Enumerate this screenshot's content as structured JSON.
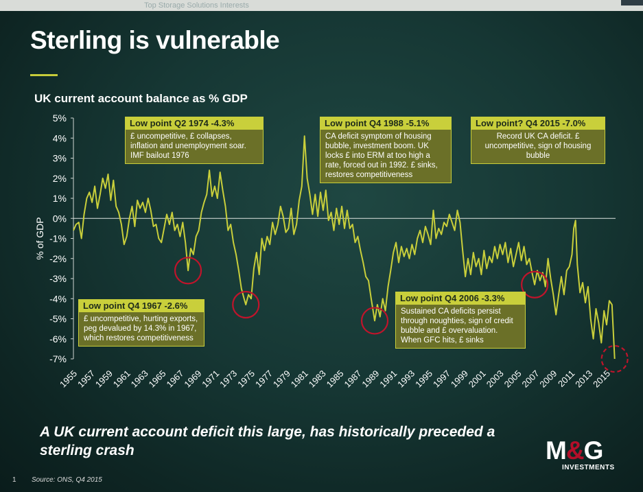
{
  "window": {
    "ghost_text": "Top Storage Solutions Interests"
  },
  "slide": {
    "title": "Sterling is vulnerable",
    "chart_title": "UK current account balance as % GDP",
    "conclusion": "A UK current account deficit this large, has historically preceded a sterling crash",
    "source": "Source: ONS, Q4 2015",
    "page_number": "1",
    "logo": {
      "main_a": "M",
      "main_amp": "&",
      "main_b": "G",
      "sub": "INVESTMENTS"
    }
  },
  "callouts": [
    {
      "head": "Low point Q2 1974 -4.3%",
      "body": "£ uncompetitive, £ collapses, inflation and unemployment soar. IMF bailout 1976"
    },
    {
      "head": "Low point Q4 1988  -5.1%",
      "body": "CA deficit symptom of housing bubble, investment boom.  UK locks  £ into ERM at too high a rate, forced out in 1992.  £ sinks, restores competitiveness"
    },
    {
      "head": "Low point? Q4 2015 -7.0%",
      "body": "Record UK CA deficit. £ uncompetitive, sign of housing bubble"
    },
    {
      "head": "Low point Q4 1967 -2.6%",
      "body": "£ uncompetitive, hurting exports, peg devalued by 14.3% in 1967, which restores competitiveness"
    },
    {
      "head": "Low point Q4 2006 -3.3%",
      "body": "Sustained CA deficits persist through noughties, sign of credit bubble and £ overvaluation. When GFC hits, £ sinks"
    }
  ],
  "chart_data": {
    "type": "line",
    "title": "UK current account balance as % GDP",
    "xlabel": "",
    "ylabel": "% of GDP",
    "ylim": [
      -7,
      5
    ],
    "xlim": [
      1955,
      2016
    ],
    "y_ticks": [
      "5%",
      "4%",
      "3%",
      "2%",
      "1%",
      "0%",
      "-1%",
      "-2%",
      "-3%",
      "-4%",
      "-5%",
      "-6%",
      "-7%"
    ],
    "y_tick_values": [
      5,
      4,
      3,
      2,
      1,
      0,
      -1,
      -2,
      -3,
      -4,
      -5,
      -6,
      -7
    ],
    "x_ticks": [
      "1955",
      "1957",
      "1959",
      "1961",
      "1963",
      "1965",
      "1967",
      "1969",
      "1971",
      "1973",
      "1975",
      "1977",
      "1979",
      "1981",
      "1983",
      "1985",
      "1987",
      "1989",
      "1991",
      "1993",
      "1995",
      "1997",
      "1999",
      "2001",
      "2003",
      "2005",
      "2007",
      "2009",
      "2011",
      "2013",
      "2015"
    ],
    "zero_line": true,
    "highlighted_lows": [
      {
        "year": 1967.9,
        "value": -2.6,
        "style": "solid"
      },
      {
        "year": 1974.4,
        "value": -4.3,
        "style": "solid"
      },
      {
        "year": 1988.9,
        "value": -5.1,
        "style": "solid"
      },
      {
        "year": 2006.9,
        "value": -3.3,
        "style": "solid"
      },
      {
        "year": 2015.9,
        "value": -7.0,
        "style": "dashed"
      }
    ],
    "series": [
      {
        "name": "UK current account balance (% GDP)",
        "color": "#c9cf3b",
        "points": [
          [
            1955.0,
            -0.6
          ],
          [
            1955.3,
            -0.3
          ],
          [
            1955.6,
            -0.2
          ],
          [
            1955.9,
            -1.0
          ],
          [
            1956.2,
            0.2
          ],
          [
            1956.5,
            1.0
          ],
          [
            1956.8,
            1.3
          ],
          [
            1957.1,
            0.8
          ],
          [
            1957.4,
            1.6
          ],
          [
            1957.7,
            0.5
          ],
          [
            1958.0,
            1.2
          ],
          [
            1958.3,
            2.0
          ],
          [
            1958.6,
            1.5
          ],
          [
            1958.9,
            2.2
          ],
          [
            1959.2,
            0.9
          ],
          [
            1959.5,
            1.9
          ],
          [
            1959.8,
            0.6
          ],
          [
            1960.1,
            0.3
          ],
          [
            1960.4,
            -0.3
          ],
          [
            1960.7,
            -1.3
          ],
          [
            1961.0,
            -0.9
          ],
          [
            1961.3,
            0.0
          ],
          [
            1961.6,
            0.6
          ],
          [
            1961.9,
            -0.4
          ],
          [
            1962.2,
            0.9
          ],
          [
            1962.5,
            0.5
          ],
          [
            1962.8,
            0.8
          ],
          [
            1963.1,
            0.3
          ],
          [
            1963.4,
            1.0
          ],
          [
            1963.7,
            0.4
          ],
          [
            1964.0,
            -0.4
          ],
          [
            1964.3,
            -0.3
          ],
          [
            1964.6,
            -1.0
          ],
          [
            1964.9,
            -1.2
          ],
          [
            1965.2,
            -0.5
          ],
          [
            1965.5,
            0.2
          ],
          [
            1965.8,
            -0.3
          ],
          [
            1966.1,
            0.3
          ],
          [
            1966.4,
            -0.6
          ],
          [
            1966.7,
            -0.3
          ],
          [
            1967.0,
            -0.9
          ],
          [
            1967.3,
            -0.2
          ],
          [
            1967.6,
            -1.2
          ],
          [
            1967.9,
            -2.6
          ],
          [
            1968.2,
            -1.5
          ],
          [
            1968.5,
            -1.8
          ],
          [
            1968.8,
            -0.9
          ],
          [
            1969.1,
            -0.6
          ],
          [
            1969.4,
            0.3
          ],
          [
            1969.7,
            0.8
          ],
          [
            1970.0,
            1.2
          ],
          [
            1970.3,
            2.4
          ],
          [
            1970.6,
            1.1
          ],
          [
            1970.9,
            1.6
          ],
          [
            1971.2,
            1.0
          ],
          [
            1971.5,
            2.3
          ],
          [
            1971.8,
            1.4
          ],
          [
            1972.1,
            0.6
          ],
          [
            1972.4,
            -0.6
          ],
          [
            1972.7,
            -0.3
          ],
          [
            1973.0,
            -1.2
          ],
          [
            1973.3,
            -1.8
          ],
          [
            1973.6,
            -2.6
          ],
          [
            1973.9,
            -3.5
          ],
          [
            1974.2,
            -4.0
          ],
          [
            1974.4,
            -4.3
          ],
          [
            1974.7,
            -3.8
          ],
          [
            1975.0,
            -4.0
          ],
          [
            1975.3,
            -2.5
          ],
          [
            1975.6,
            -1.7
          ],
          [
            1975.9,
            -2.8
          ],
          [
            1976.2,
            -1.0
          ],
          [
            1976.5,
            -1.6
          ],
          [
            1976.8,
            -0.9
          ],
          [
            1977.1,
            -1.3
          ],
          [
            1977.4,
            -0.2
          ],
          [
            1977.7,
            -0.8
          ],
          [
            1978.0,
            -0.3
          ],
          [
            1978.3,
            0.6
          ],
          [
            1978.6,
            0.1
          ],
          [
            1978.9,
            -0.7
          ],
          [
            1979.2,
            -0.5
          ],
          [
            1979.5,
            0.5
          ],
          [
            1979.8,
            -0.8
          ],
          [
            1980.1,
            -0.3
          ],
          [
            1980.4,
            0.9
          ],
          [
            1980.7,
            1.6
          ],
          [
            1981.0,
            4.1
          ],
          [
            1981.3,
            2.0
          ],
          [
            1981.6,
            1.2
          ],
          [
            1981.9,
            0.2
          ],
          [
            1982.2,
            1.2
          ],
          [
            1982.5,
            0.1
          ],
          [
            1982.8,
            1.3
          ],
          [
            1983.1,
            0.4
          ],
          [
            1983.4,
            1.4
          ],
          [
            1983.7,
            -0.1
          ],
          [
            1984.0,
            0.3
          ],
          [
            1984.3,
            -0.6
          ],
          [
            1984.6,
            0.5
          ],
          [
            1984.9,
            -0.3
          ],
          [
            1985.2,
            0.6
          ],
          [
            1985.5,
            -0.5
          ],
          [
            1985.8,
            0.4
          ],
          [
            1986.1,
            -0.5
          ],
          [
            1986.4,
            -0.3
          ],
          [
            1986.7,
            -1.2
          ],
          [
            1987.0,
            -0.9
          ],
          [
            1987.3,
            -1.6
          ],
          [
            1987.6,
            -2.2
          ],
          [
            1987.9,
            -2.9
          ],
          [
            1988.2,
            -3.1
          ],
          [
            1988.5,
            -4.0
          ],
          [
            1988.9,
            -5.1
          ],
          [
            1989.2,
            -4.3
          ],
          [
            1989.5,
            -4.9
          ],
          [
            1989.8,
            -4.0
          ],
          [
            1990.1,
            -4.6
          ],
          [
            1990.4,
            -3.4
          ],
          [
            1990.7,
            -2.6
          ],
          [
            1991.0,
            -1.7
          ],
          [
            1991.3,
            -1.2
          ],
          [
            1991.6,
            -2.2
          ],
          [
            1991.9,
            -1.4
          ],
          [
            1992.2,
            -1.9
          ],
          [
            1992.5,
            -1.5
          ],
          [
            1992.8,
            -2.0
          ],
          [
            1993.1,
            -1.3
          ],
          [
            1993.4,
            -1.8
          ],
          [
            1993.7,
            -1.0
          ],
          [
            1994.0,
            -0.6
          ],
          [
            1994.3,
            -1.2
          ],
          [
            1994.6,
            -0.4
          ],
          [
            1994.9,
            -0.8
          ],
          [
            1995.2,
            -1.3
          ],
          [
            1995.5,
            0.4
          ],
          [
            1995.8,
            -1.0
          ],
          [
            1996.1,
            -0.5
          ],
          [
            1996.4,
            -0.8
          ],
          [
            1996.7,
            -0.2
          ],
          [
            1997.0,
            -0.4
          ],
          [
            1997.3,
            0.2
          ],
          [
            1997.6,
            -0.2
          ],
          [
            1997.9,
            -0.6
          ],
          [
            1998.2,
            0.4
          ],
          [
            1998.5,
            -0.2
          ],
          [
            1998.8,
            -1.6
          ],
          [
            1999.1,
            -2.9
          ],
          [
            1999.4,
            -2.0
          ],
          [
            1999.7,
            -2.8
          ],
          [
            2000.0,
            -1.7
          ],
          [
            2000.3,
            -2.4
          ],
          [
            2000.6,
            -2.0
          ],
          [
            2000.9,
            -2.8
          ],
          [
            2001.2,
            -1.6
          ],
          [
            2001.5,
            -2.5
          ],
          [
            2001.8,
            -1.9
          ],
          [
            2002.1,
            -2.2
          ],
          [
            2002.4,
            -1.4
          ],
          [
            2002.7,
            -2.0
          ],
          [
            2003.0,
            -1.3
          ],
          [
            2003.3,
            -1.8
          ],
          [
            2003.6,
            -1.2
          ],
          [
            2003.9,
            -2.2
          ],
          [
            2004.2,
            -1.5
          ],
          [
            2004.5,
            -2.4
          ],
          [
            2004.8,
            -1.8
          ],
          [
            2005.1,
            -1.2
          ],
          [
            2005.4,
            -2.1
          ],
          [
            2005.7,
            -1.4
          ],
          [
            2006.0,
            -2.3
          ],
          [
            2006.3,
            -2.0
          ],
          [
            2006.6,
            -2.7
          ],
          [
            2006.9,
            -3.3
          ],
          [
            2007.2,
            -2.6
          ],
          [
            2007.5,
            -3.1
          ],
          [
            2007.8,
            -2.7
          ],
          [
            2008.1,
            -3.4
          ],
          [
            2008.4,
            -2.0
          ],
          [
            2008.7,
            -3.0
          ],
          [
            2009.0,
            -3.8
          ],
          [
            2009.3,
            -4.8
          ],
          [
            2009.6,
            -3.8
          ],
          [
            2009.9,
            -2.9
          ],
          [
            2010.2,
            -3.8
          ],
          [
            2010.5,
            -2.6
          ],
          [
            2010.8,
            -2.4
          ],
          [
            2011.1,
            -1.8
          ],
          [
            2011.3,
            -0.5
          ],
          [
            2011.5,
            -0.1
          ],
          [
            2011.7,
            -2.3
          ],
          [
            2012.0,
            -3.7
          ],
          [
            2012.3,
            -3.2
          ],
          [
            2012.6,
            -4.2
          ],
          [
            2012.9,
            -3.4
          ],
          [
            2013.2,
            -5.0
          ],
          [
            2013.5,
            -6.0
          ],
          [
            2013.8,
            -4.5
          ],
          [
            2014.1,
            -5.2
          ],
          [
            2014.4,
            -6.2
          ],
          [
            2014.7,
            -4.6
          ],
          [
            2015.0,
            -5.3
          ],
          [
            2015.3,
            -4.1
          ],
          [
            2015.6,
            -4.3
          ],
          [
            2015.9,
            -7.0
          ]
        ]
      }
    ]
  }
}
